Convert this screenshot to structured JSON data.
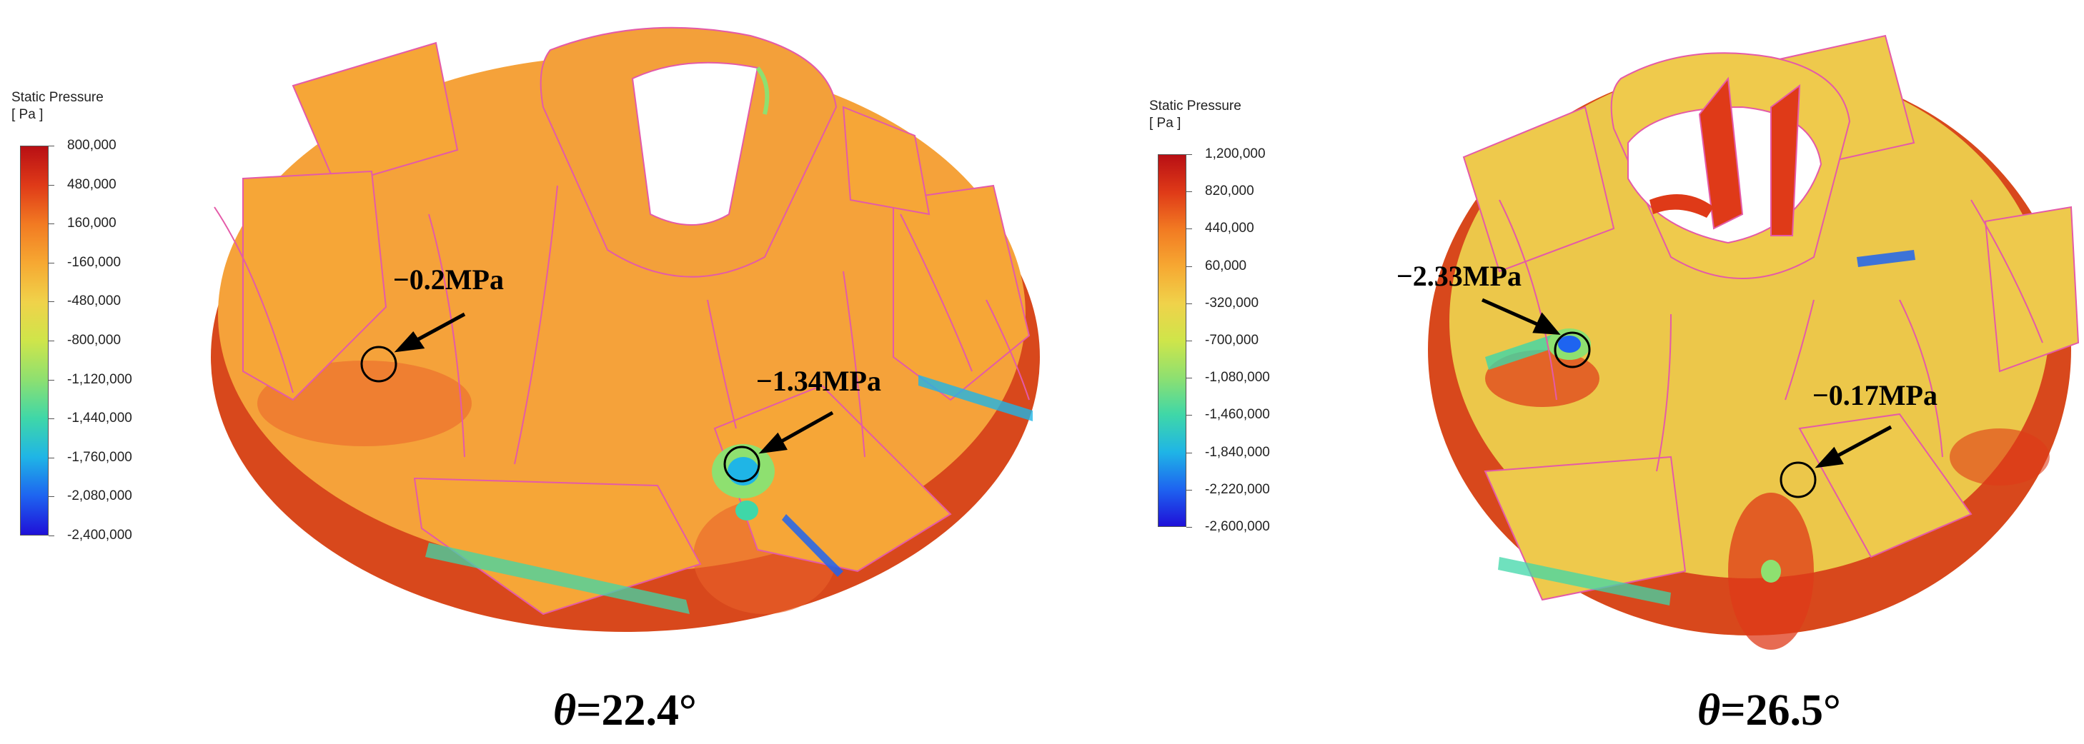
{
  "panels": [
    {
      "legend": {
        "title": "Static Pressure",
        "unit": "[ Pa ]",
        "ticks": [
          "800,000",
          "480,000",
          "160,000",
          "-160,000",
          "-480,000",
          "-800,000",
          "-1,120,000",
          "-1,440,000",
          "-1,760,000",
          "-2,080,000",
          "-2,400,000"
        ]
      },
      "callouts": [
        "−0.2MPa",
        "−1.34MPa"
      ],
      "caption": {
        "symbol": "θ",
        "value": "=22.4°"
      }
    },
    {
      "legend": {
        "title": "Static Pressure",
        "unit": "[ Pa ]",
        "ticks": [
          "1,200,000",
          "820,000",
          "440,000",
          "60,000",
          "-320,000",
          "-700,000",
          "-1,080,000",
          "-1,460,000",
          "-1,840,000",
          "-2,220,000",
          "-2,600,000"
        ]
      },
      "callouts": [
        "−2.33MPa",
        "−0.17MPa"
      ],
      "caption": {
        "symbol": "θ",
        "value": "=26.5°"
      }
    }
  ],
  "colors": {
    "colormap": [
      "#b80f14",
      "#df3a18",
      "#f27a22",
      "#f6a832",
      "#f0d24a",
      "#cfe54a",
      "#8ee070",
      "#3fd7a8",
      "#1fb5e6",
      "#1e64f0",
      "#1f10d8"
    ],
    "surface_orange": "#f5a23a",
    "surface_yellow": "#ecc74a",
    "rim_red": "#d8481c",
    "edge_line": "#e45aa8",
    "arrow": "#000000"
  }
}
